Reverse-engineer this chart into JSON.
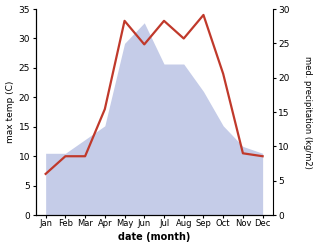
{
  "months": [
    "Jan",
    "Feb",
    "Mar",
    "Apr",
    "May",
    "Jun",
    "Jul",
    "Aug",
    "Sep",
    "Oct",
    "Nov",
    "Dec"
  ],
  "month_x": [
    0,
    1,
    2,
    3,
    4,
    5,
    6,
    7,
    8,
    9,
    10,
    11
  ],
  "temperature": [
    7,
    10,
    10,
    18,
    33,
    29,
    33,
    30,
    34,
    24,
    10.5,
    10
  ],
  "precipitation": [
    9,
    9,
    11,
    13,
    25,
    28,
    22,
    22,
    18,
    13,
    10,
    9
  ],
  "temp_color": "#c0392b",
  "precip_fill_color": "#c5cce8",
  "precip_edge_color": "#b0b8d8",
  "temp_ylim": [
    0,
    35
  ],
  "precip_ylim": [
    0,
    30
  ],
  "temp_yticks": [
    0,
    5,
    10,
    15,
    20,
    25,
    30,
    35
  ],
  "precip_yticks": [
    0,
    5,
    10,
    15,
    20,
    25,
    30
  ],
  "ylabel_left": "max temp (C)",
  "ylabel_right": "med. precipitation (kg/m2)",
  "xlabel": "date (month)",
  "bg_color": "#ffffff",
  "line_width": 1.6,
  "figsize": [
    3.18,
    2.48
  ],
  "dpi": 100
}
